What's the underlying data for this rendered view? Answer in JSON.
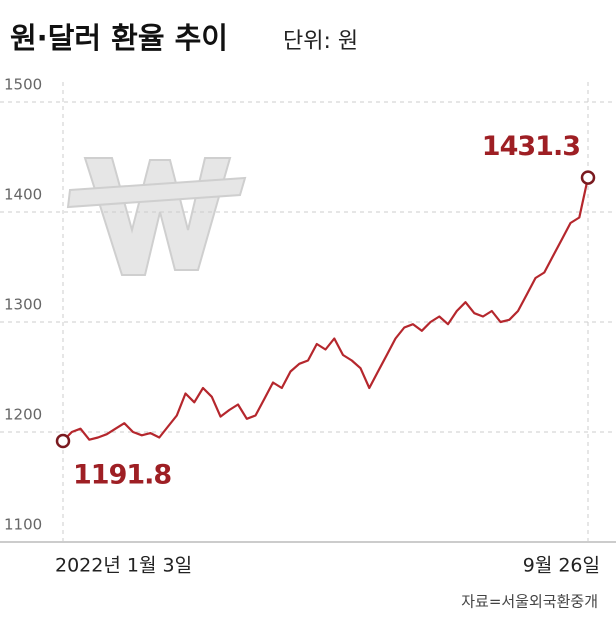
{
  "chart_data": {
    "type": "line",
    "title": "원·달러 환율 추이",
    "subtitle": "단위: 원",
    "source": "자료=서울외국환중개",
    "categories": [
      "2022년 1월 3일",
      null,
      null,
      null,
      null,
      null,
      null,
      null,
      null,
      null,
      null,
      null,
      null,
      null,
      null,
      null,
      null,
      null,
      null,
      null,
      null,
      null,
      null,
      null,
      null,
      null,
      null,
      null,
      null,
      null,
      null,
      null,
      null,
      null,
      null,
      null,
      null,
      null,
      null,
      null,
      null,
      null,
      null,
      null,
      null,
      null,
      null,
      null,
      null,
      null,
      null,
      null,
      null,
      null,
      null,
      null,
      null,
      null,
      null,
      null,
      "9월 26일"
    ],
    "series": [
      {
        "name": "원·달러 환율",
        "color": "#b5272d",
        "values": [
          1191.8,
          1200,
          1203,
          1193,
          1195,
          1198,
          1203,
          1208,
          1200,
          1197,
          1199,
          1195,
          1205,
          1215,
          1235,
          1227,
          1240,
          1232,
          1214,
          1220,
          1225,
          1212,
          1215,
          1230,
          1245,
          1240,
          1255,
          1262,
          1265,
          1280,
          1275,
          1285,
          1270,
          1265,
          1258,
          1240,
          1255,
          1270,
          1285,
          1295,
          1298,
          1292,
          1300,
          1305,
          1298,
          1310,
          1318,
          1308,
          1305,
          1310,
          1300,
          1302,
          1310,
          1325,
          1340,
          1345,
          1360,
          1375,
          1390,
          1395,
          1431.3
        ]
      }
    ],
    "ylim": [
      1100,
      1500
    ],
    "yticks": [
      1100,
      1200,
      1300,
      1400,
      1500
    ],
    "grid": true
  }
}
